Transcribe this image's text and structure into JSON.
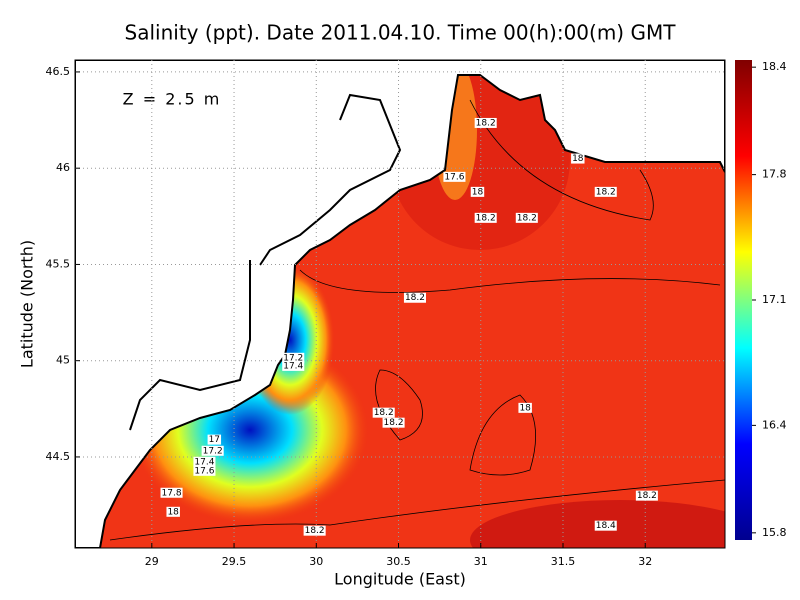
{
  "chart_data": {
    "type": "contour-map",
    "title": "Salinity (ppt). Date 2011.04.10. Time 00(h):00(m) GMT",
    "annotation": "Z = 2.5 m",
    "x_label": "Longitude (East)",
    "y_label": "Latitude (North)",
    "xlim": [
      28.533,
      32.485
    ],
    "ylim": [
      44.027,
      46.562
    ],
    "xticks": [
      29,
      29.5,
      30,
      30.5,
      31,
      31.5,
      32
    ],
    "yticks": [
      44.5,
      45,
      45.5,
      46,
      46.5
    ],
    "grid": true,
    "colorbar": {
      "clim": [
        15.76,
        18.44
      ],
      "ticks": [
        15.8,
        16.4,
        17.1,
        17.8,
        18.4
      ],
      "colors": [
        "#00008f",
        "#0000ff",
        "#00ffff",
        "#ffff00",
        "#ff0000",
        "#800000"
      ]
    },
    "contour_labels": [
      {
        "value": 18.2,
        "lon": 31.03,
        "lat": 46.235
      },
      {
        "value": 18,
        "lon": 31.59,
        "lat": 46.05
      },
      {
        "value": 17.6,
        "lon": 30.84,
        "lat": 45.955
      },
      {
        "value": 18,
        "lon": 30.98,
        "lat": 45.877
      },
      {
        "value": 18.2,
        "lon": 31.76,
        "lat": 45.877
      },
      {
        "value": 18.2,
        "lon": 31.03,
        "lat": 45.742
      },
      {
        "value": 18.2,
        "lon": 31.28,
        "lat": 45.742
      },
      {
        "value": 18.2,
        "lon": 30.6,
        "lat": 45.327
      },
      {
        "value": 17.2,
        "lon": 29.86,
        "lat": 45.015
      },
      {
        "value": 17.4,
        "lon": 29.86,
        "lat": 44.973
      },
      {
        "value": 18.2,
        "lon": 30.41,
        "lat": 44.73
      },
      {
        "value": 18.2,
        "lon": 30.47,
        "lat": 44.678
      },
      {
        "value": 18,
        "lon": 31.27,
        "lat": 44.755
      },
      {
        "value": 17,
        "lon": 29.38,
        "lat": 44.59
      },
      {
        "value": 17.2,
        "lon": 29.37,
        "lat": 44.532
      },
      {
        "value": 17.4,
        "lon": 29.32,
        "lat": 44.475
      },
      {
        "value": 17.6,
        "lon": 29.32,
        "lat": 44.428
      },
      {
        "value": 17.8,
        "lon": 29.12,
        "lat": 44.314
      },
      {
        "value": 18,
        "lon": 29.13,
        "lat": 44.215
      },
      {
        "value": 18.2,
        "lon": 32.01,
        "lat": 44.299
      },
      {
        "value": 18.2,
        "lon": 29.99,
        "lat": 44.117
      },
      {
        "value": 18.4,
        "lon": 31.76,
        "lat": 44.143
      }
    ]
  }
}
